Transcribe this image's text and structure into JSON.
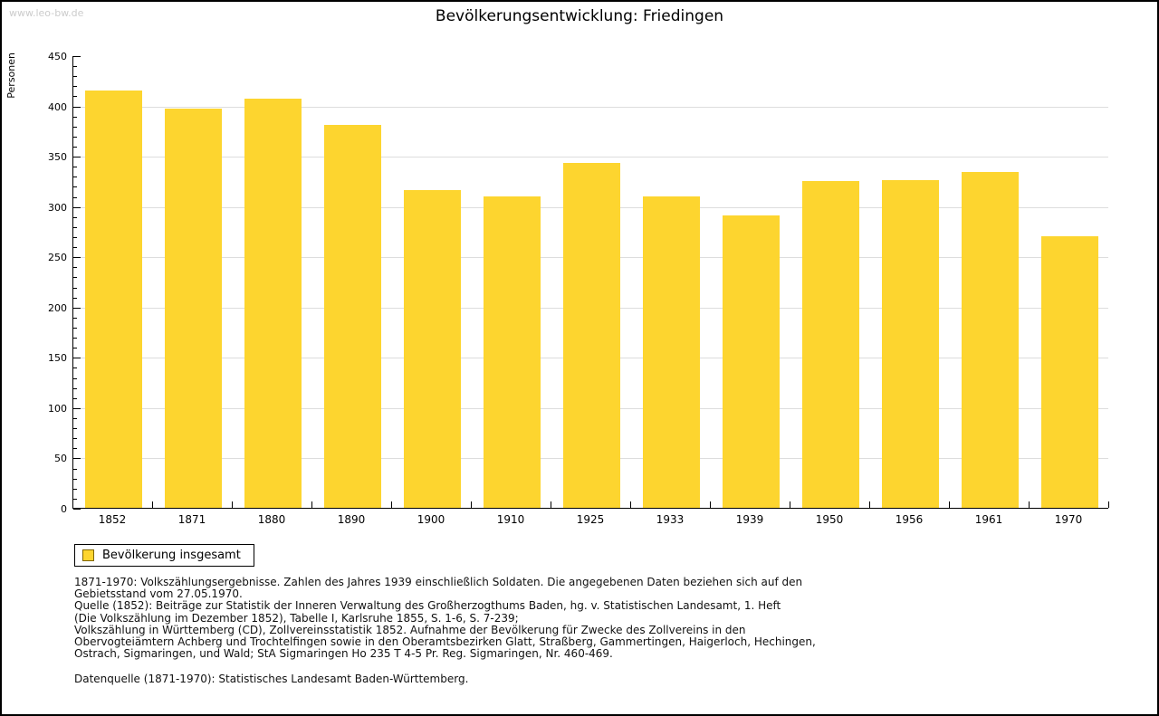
{
  "watermark": "www.leo-bw.de",
  "title": "Bevölkerungsentwicklung: Friedingen",
  "legend": {
    "label": "Bevölkerung insgesamt"
  },
  "colors": {
    "bar": "#FDD52F",
    "grid": "#DDDDDD",
    "axis": "#000000",
    "watermark": "#CCCCCC",
    "swatch_border": "#806600"
  },
  "notes_lines": [
    "1871-1970: Volkszählungsergebnisse. Zahlen des Jahres 1939 einschließlich Soldaten. Die angegebenen Daten beziehen sich auf den",
    "Gebietsstand vom 27.05.1970.",
    "Quelle (1852): Beiträge zur Statistik der Inneren Verwaltung des Großherzogthums Baden, hg. v. Statistischen Landesamt, 1. Heft",
    "(Die Volkszählung im Dezember 1852), Tabelle I, Karlsruhe 1855, S. 1-6, S. 7-239;",
    "Volkszählung in Württemberg (CD), Zollvereinsstatistik 1852. Aufnahme der Bevölkerung für Zwecke des Zollvereins in den",
    "Obervogteiämtern Achberg und Trochtelfingen sowie in den Oberamtsbezirken Glatt, Straßberg, Gammertingen, Haigerloch, Hechingen,",
    "Ostrach, Sigmaringen, und Wald; StA Sigmaringen Ho 235 T 4-5 Pr. Reg. Sigmaringen, Nr. 460-469."
  ],
  "datasource": "Datenquelle (1871-1970): Statistisches Landesamt Baden-Württemberg.",
  "chart_data": {
    "type": "bar",
    "title": "Bevölkerungsentwicklung: Friedingen",
    "categories": [
      "1852",
      "1871",
      "1880",
      "1890",
      "1900",
      "1910",
      "1925",
      "1933",
      "1939",
      "1950",
      "1956",
      "1961",
      "1970"
    ],
    "values": [
      415,
      397,
      407,
      381,
      316,
      310,
      343,
      310,
      291,
      325,
      326,
      334,
      270
    ],
    "series_name": "Bevölkerung insgesamt",
    "xlabel": "",
    "ylabel": "Personen",
    "ylim": [
      0,
      450
    ],
    "ytick_step": 50,
    "ytick_minor_step": 10,
    "grid": true,
    "legend_position": "bottom-left",
    "bar_color": "#FDD52F"
  }
}
